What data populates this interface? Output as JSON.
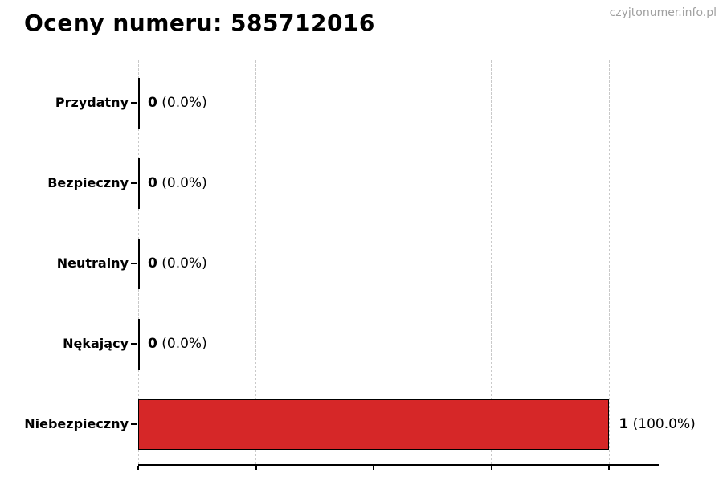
{
  "page": {
    "title": "Oceny numeru: 585712016",
    "watermark": "czyjtonumer.info.pl"
  },
  "chart_data": {
    "type": "bar",
    "orientation": "horizontal",
    "title": "Oceny numeru: 585712016",
    "categories": [
      "Przydatny",
      "Bezpieczny",
      "Neutralny",
      "Nękający",
      "Niebezpieczny"
    ],
    "values": [
      0,
      0,
      0,
      0,
      1
    ],
    "value_labels": [
      "0",
      "0",
      "0",
      "0",
      "1"
    ],
    "percent_labels": [
      "(0.0%)",
      "(0.0%)",
      "(0.0%)",
      "(0.0%)",
      "(100.0%)"
    ],
    "percentages": [
      0.0,
      0.0,
      0.0,
      0.0,
      100.0
    ],
    "bar_color": "#d62728",
    "bar_border_color": "#000000",
    "zero_bar_color": "#000000",
    "grid": true,
    "grid_values": [
      0,
      0.25,
      0.5,
      0.75,
      1.0
    ],
    "grid_color": "#c9c9c9",
    "xlim": [
      0,
      1.105
    ],
    "xlabel": "",
    "ylabel": "",
    "legend": false,
    "x_tick_labels_visible": false
  }
}
